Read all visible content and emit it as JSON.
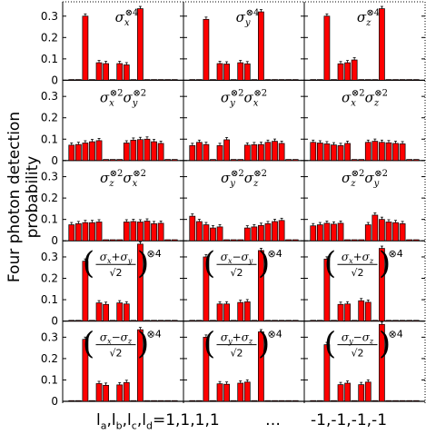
{
  "y_axis_label": "Four photon detection probability",
  "x_axis": {
    "label_prefix": "l",
    "subscripts": [
      "a",
      "b",
      "c",
      "d"
    ],
    "left_value": "1,1,1,1",
    "ellipsis": "…",
    "right_value": "-1,-1,-1,-1"
  },
  "y_ticks": [
    "0",
    "0.1",
    "0.2",
    "0.3"
  ],
  "colors": {
    "bar": "#ff0000",
    "bar_outline": "#000000",
    "axes": "#000000"
  },
  "chart_data": [
    {
      "type": "bar",
      "panel": "r1c1",
      "title": "σx⊗4",
      "ylim": [
        0,
        0.35
      ],
      "values": [
        0,
        0.003,
        0.3,
        0.003,
        0.082,
        0.078,
        0.003,
        0.078,
        0.072,
        0.003,
        0.335,
        0.003,
        0,
        0,
        0,
        0
      ]
    },
    {
      "type": "bar",
      "panel": "r1c2",
      "title": "σy⊗4",
      "ylim": [
        0,
        0.35
      ],
      "values": [
        0,
        0.003,
        0.285,
        0.003,
        0.078,
        0.076,
        0.003,
        0.082,
        0.077,
        0.003,
        0.32,
        0.003,
        0,
        0,
        0,
        0
      ]
    },
    {
      "type": "bar",
      "panel": "r1c3",
      "title": "σz⊗4",
      "ylim": [
        0,
        0.35
      ],
      "values": [
        0,
        0.003,
        0.3,
        0.003,
        0.077,
        0.082,
        0.095,
        0.003,
        0.003,
        0.003,
        0.335,
        0.003,
        0,
        0,
        0,
        0
      ]
    },
    {
      "type": "bar",
      "panel": "r2c1",
      "title": "σx⊗2σy⊗2",
      "ylim": [
        0,
        0.35
      ],
      "values": [
        0.072,
        0.075,
        0.082,
        0.088,
        0.093,
        0.005,
        0.005,
        0.005,
        0.082,
        0.095,
        0.098,
        0.1,
        0.088,
        0.08,
        0.005,
        0.005
      ]
    },
    {
      "type": "bar",
      "panel": "r2c2",
      "title": "σy⊗2σx⊗2",
      "ylim": [
        0,
        0.35
      ],
      "values": [
        0.07,
        0.085,
        0.075,
        0.005,
        0.07,
        0.097,
        0.005,
        0.005,
        0.072,
        0.074,
        0.075,
        0.085,
        0.09,
        0.08,
        0.005,
        0.005
      ]
    },
    {
      "type": "bar",
      "panel": "r2c3",
      "title": "σx⊗2σz⊗2",
      "ylim": [
        0,
        0.35
      ],
      "values": [
        0.085,
        0.082,
        0.078,
        0.073,
        0.07,
        0.08,
        0.005,
        0.005,
        0.085,
        0.09,
        0.085,
        0.083,
        0.08,
        0.078,
        0.005,
        0.005
      ]
    },
    {
      "type": "bar",
      "panel": "r3c1",
      "title": "σz⊗2σx⊗2",
      "ylim": [
        0,
        0.35
      ],
      "values": [
        0.075,
        0.08,
        0.085,
        0.085,
        0.088,
        0.005,
        0.005,
        0.005,
        0.088,
        0.09,
        0.088,
        0.092,
        0.08,
        0.082,
        0.005,
        0.005
      ]
    },
    {
      "type": "bar",
      "panel": "r3c2",
      "title": "σy⊗2σz⊗2",
      "ylim": [
        0,
        0.35
      ],
      "values": [
        0.115,
        0.09,
        0.075,
        0.06,
        0.065,
        0.005,
        0.005,
        0.005,
        0.06,
        0.065,
        0.072,
        0.08,
        0.09,
        0.095,
        0.005,
        0.005
      ]
    },
    {
      "type": "bar",
      "panel": "r3c3",
      "title": "σz⊗2σy⊗2",
      "ylim": [
        0,
        0.35
      ],
      "values": [
        0.07,
        0.075,
        0.082,
        0.078,
        0.082,
        0.005,
        0.005,
        0.005,
        0.075,
        0.12,
        0.1,
        0.088,
        0.085,
        0.08,
        0.005,
        0.005
      ]
    },
    {
      "type": "bar",
      "panel": "r4c1",
      "title": "((σx+σy)/√2)⊗4",
      "title_top": "σx+σy",
      "title_bot": "√2",
      "ylim": [
        0,
        0.35
      ],
      "values": [
        0,
        0.003,
        0.28,
        0.003,
        0.085,
        0.078,
        0.003,
        0.085,
        0.08,
        0.003,
        0.36,
        0.003,
        0,
        0,
        0,
        0
      ]
    },
    {
      "type": "bar",
      "panel": "r4c2",
      "title": "((σx−σy)/√2)⊗4",
      "title_top": "σx−σy",
      "title_bot": "√2",
      "ylim": [
        0,
        0.35
      ],
      "values": [
        0,
        0.003,
        0.3,
        0.003,
        0.08,
        0.08,
        0.003,
        0.087,
        0.09,
        0.003,
        0.33,
        0.003,
        0,
        0,
        0,
        0
      ]
    },
    {
      "type": "bar",
      "panel": "r4c3",
      "title": "((σx+σz)/√2)⊗4",
      "title_top": "σx+σz",
      "title_bot": "√2",
      "ylim": [
        0,
        0.35
      ],
      "values": [
        0,
        0.003,
        0.29,
        0.003,
        0.078,
        0.08,
        0.003,
        0.095,
        0.088,
        0.003,
        0.34,
        0.003,
        0,
        0,
        0,
        0
      ]
    },
    {
      "type": "bar",
      "panel": "r5c1",
      "title": "((σx−σz)/√2)⊗4",
      "title_top": "σx−σz",
      "title_bot": "√2",
      "ylim": [
        0,
        0.35
      ],
      "values": [
        0,
        0.003,
        0.29,
        0.003,
        0.083,
        0.075,
        0.003,
        0.077,
        0.088,
        0.003,
        0.335,
        0.003,
        0,
        0,
        0,
        0
      ]
    },
    {
      "type": "bar",
      "panel": "r5c2",
      "title": "((σy+σz)/√2)⊗4",
      "title_top": "σy+σz",
      "title_bot": "√2",
      "ylim": [
        0,
        0.35
      ],
      "values": [
        0,
        0.003,
        0.3,
        0.003,
        0.082,
        0.08,
        0.003,
        0.085,
        0.09,
        0.003,
        0.325,
        0.003,
        0,
        0,
        0,
        0
      ]
    },
    {
      "type": "bar",
      "panel": "r5c3",
      "title": "((σy−σz)/√2)⊗4",
      "title_top": "σy−σz",
      "title_bot": "√2",
      "ylim": [
        0,
        0.35
      ],
      "values": [
        0,
        0.003,
        0.265,
        0.003,
        0.078,
        0.085,
        0.003,
        0.078,
        0.09,
        0.003,
        0.36,
        0.003,
        0,
        0,
        0,
        0
      ]
    }
  ]
}
